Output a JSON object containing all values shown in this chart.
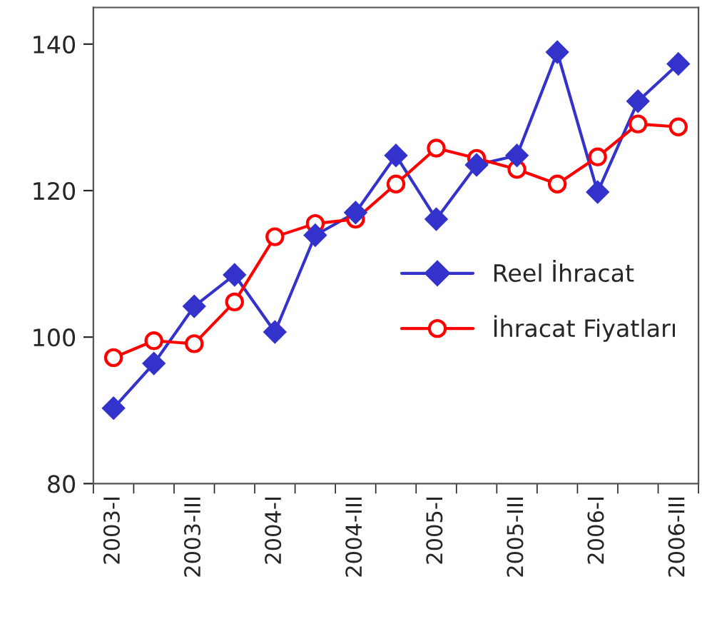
{
  "chart_data": {
    "type": "line",
    "categories": [
      "2003-I",
      null,
      "2003-III",
      null,
      "2004-I",
      null,
      "2004-III",
      null,
      "2005-I",
      null,
      "2005-III",
      null,
      "2006-I",
      null,
      "2006-III"
    ],
    "series": [
      {
        "name": "Reel İhracat",
        "color": "#3333cc",
        "marker": "diamond",
        "values": [
          90.3,
          96.4,
          104.2,
          108.5,
          100.7,
          113.9,
          117.0,
          124.8,
          116.1,
          123.5,
          124.8,
          138.9,
          119.8,
          132.2,
          137.3
        ]
      },
      {
        "name": "İhracat Fiyatları",
        "color": "#ff0000",
        "marker": "circle",
        "values": [
          97.2,
          99.5,
          99.1,
          104.8,
          113.7,
          115.5,
          116.1,
          120.9,
          125.8,
          124.4,
          122.9,
          120.9,
          124.6,
          129.1,
          128.7
        ]
      }
    ],
    "ylim": [
      80,
      145
    ],
    "yticks": [
      80,
      100,
      120,
      140
    ],
    "grid": false,
    "legend": "right",
    "line_style": "solid"
  }
}
